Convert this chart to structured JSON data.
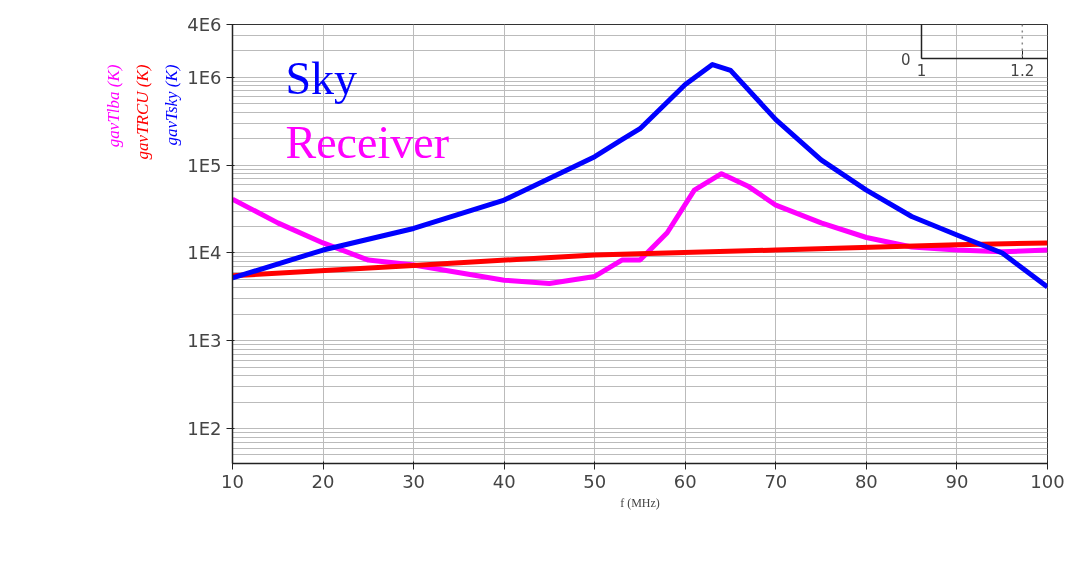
{
  "chart_data": [
    {
      "type": "line",
      "xlabel": "f (MHz)",
      "annotations": [
        "gavTlba (K)",
        "gavTRCU (K)",
        "gavTsky (K)"
      ],
      "log": "y",
      "grid": true,
      "legend": "top left",
      "line_style": "solid",
      "marker": "none",
      "xlim": [
        10,
        100
      ],
      "xticks": [
        10,
        20,
        30,
        40,
        50,
        60,
        70,
        80,
        90,
        100
      ],
      "ylim": [
        40,
        4000000
      ],
      "yticks": [
        {
          "value": 100,
          "label": "1E2"
        },
        {
          "value": 1000,
          "label": "1E3"
        },
        {
          "value": 10000,
          "label": "1E4"
        },
        {
          "value": 100000,
          "label": "1E5"
        },
        {
          "value": 1000000,
          "label": "1E6"
        },
        {
          "value": 4000000,
          "label": "4E6"
        }
      ],
      "series": [
        {
          "name": "Receiver",
          "color": "#ff00ff",
          "x": [
            10,
            15,
            20,
            25,
            30,
            40,
            45,
            50,
            53,
            55,
            58,
            61,
            64,
            67,
            70,
            75,
            80,
            85,
            90,
            95,
            100
          ],
          "values": [
            41000,
            22000,
            13000,
            8300,
            7300,
            4900,
            4500,
            5400,
            8300,
            8300,
            17000,
            52000,
            80000,
            57000,
            35000,
            22000,
            15000,
            11700,
            10800,
            10300,
            10800
          ]
        },
        {
          "color": "#ff0000",
          "x": [
            10,
            30,
            50,
            70,
            90,
            100
          ],
          "values": [
            5500,
            7200,
            9500,
            10800,
            12400,
            13000
          ]
        },
        {
          "name": "Sky",
          "color": "#0000ff",
          "x": [
            10,
            20,
            30,
            40,
            50,
            53,
            55,
            60,
            63,
            65,
            70,
            75,
            80,
            85,
            90,
            95,
            100
          ],
          "values": [
            5200,
            10800,
            19000,
            40000,
            125000,
            195000,
            260000,
            830000,
            1400000,
            1200000,
            330000,
            115000,
            52000,
            26000,
            16000,
            10000,
            4100
          ]
        }
      ]
    },
    {
      "type": "other",
      "annotations": [
        "0",
        "1",
        "1.2"
      ]
    }
  ]
}
